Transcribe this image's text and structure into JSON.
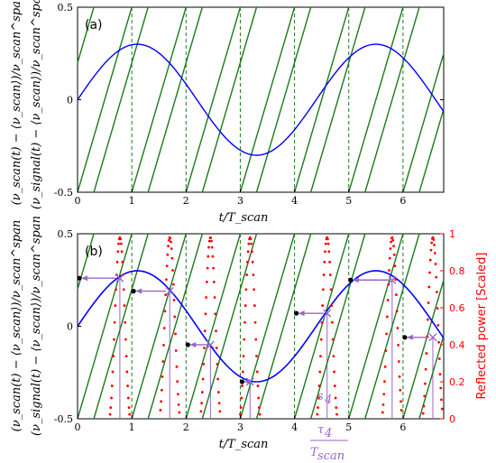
{
  "figure": {
    "colors": {
      "scan": "#1e7a1e",
      "signal": "#0000ff",
      "reflected": "#ff0000",
      "markers": "#9966cc",
      "frame": "#000000"
    }
  },
  "chart_data": [
    {
      "type": "line",
      "panel_label": "(a)",
      "xlabel": "t/T_scan",
      "ylabel_line1": "(ν_scan(t) − ⟨ν_scan⟩)/ν_scan^span",
      "ylabel_line2": "(ν_signal(t) − ⟨ν_scan⟩)/ν_scan^span",
      "xlim": [
        0,
        6.75
      ],
      "ylim": [
        -0.5,
        0.5
      ],
      "xticks": [
        0,
        1,
        2,
        3,
        4,
        5,
        6
      ],
      "xtick_labels": [
        "0",
        "1",
        "2",
        "3",
        "4",
        "5",
        "6"
      ],
      "yticks": [
        -0.5,
        0,
        0.5
      ],
      "ytick_labels": [
        "-0.5",
        "0",
        "0.5"
      ],
      "grid": "vertical dashed at integer t",
      "series": [
        {
          "kind": "sawtooth",
          "description_values": {
            "period": 1.0,
            "shift": 0.7,
            "min": -0.5,
            "max": 0.5
          },
          "lines": [
            {
              "x": [
                -0.7,
                0.3
              ],
              "y": [
                -0.5,
                0.5
              ]
            },
            {
              "x": [
                0.0,
                1.0
              ],
              "y": [
                -0.5,
                0.5
              ]
            },
            {
              "x": [
                1.0,
                2.0
              ],
              "y": [
                -0.5,
                0.5
              ]
            },
            {
              "x": [
                2.0,
                3.0
              ],
              "y": [
                -0.5,
                0.5
              ]
            },
            {
              "x": [
                3.0,
                4.0
              ],
              "y": [
                -0.5,
                0.5
              ]
            },
            {
              "x": [
                4.0,
                5.0
              ],
              "y": [
                -0.5,
                0.5
              ]
            },
            {
              "x": [
                5.0,
                6.0
              ],
              "y": [
                -0.5,
                0.5
              ]
            },
            {
              "x": [
                6.0,
                7.0
              ],
              "y": [
                -0.5,
                0.5
              ]
            },
            {
              "x": [
                0.3,
                1.3
              ],
              "y": [
                -0.5,
                0.5
              ]
            },
            {
              "x": [
                1.3,
                2.3
              ],
              "y": [
                -0.5,
                0.5
              ]
            },
            {
              "x": [
                2.3,
                3.3
              ],
              "y": [
                -0.5,
                0.5
              ]
            },
            {
              "x": [
                3.3,
                4.3
              ],
              "y": [
                -0.5,
                0.5
              ]
            },
            {
              "x": [
                4.3,
                5.3
              ],
              "y": [
                -0.5,
                0.5
              ]
            },
            {
              "x": [
                5.3,
                6.3
              ],
              "y": [
                -0.5,
                0.5
              ]
            },
            {
              "x": [
                6.3,
                7.3
              ],
              "y": [
                -0.5,
                0.5
              ]
            }
          ]
        },
        {
          "kind": "sine",
          "amplitude": 0.3,
          "period": 4.4,
          "phase_x0": 0.0,
          "x_range": [
            0,
            6.75
          ]
        }
      ]
    },
    {
      "type": "line",
      "panel_label": "(b)",
      "xlabel": "t/T_scan",
      "ylabel_line1": "(ν_scan(t) − ⟨ν_scan⟩)/ν_scan^span",
      "ylabel_line2": "(ν_signal(t) − ⟨ν_scan⟩)/ν_scan^span",
      "ylabel_right": "Reflected power [Scaled]",
      "xlim": [
        0,
        6.75
      ],
      "ylim": [
        -0.5,
        0.5
      ],
      "ylim_right": [
        0,
        1
      ],
      "xticks": [
        0,
        1,
        2,
        3,
        4,
        5,
        6
      ],
      "xtick_labels": [
        "0",
        "1",
        "2",
        "3",
        "4",
        "5",
        "6"
      ],
      "yticks": [
        -0.5,
        0,
        0.5
      ],
      "ytick_labels": [
        "-0.5",
        "0",
        "0.5"
      ],
      "yticks_right": [
        0,
        0.2,
        0.4,
        0.6,
        0.8,
        1
      ],
      "ytick_labels_right": [
        "0",
        "0.2",
        "0.4",
        "0.6",
        "0.8",
        "1"
      ],
      "intersections": [
        {
          "t": 0.78,
          "y": 0.26
        },
        {
          "t": 1.7,
          "y": 0.19
        },
        {
          "t": 2.45,
          "y": -0.1
        },
        {
          "t": 3.18,
          "y": -0.3
        },
        {
          "t": 4.6,
          "y": 0.07
        },
        {
          "t": 5.8,
          "y": 0.25
        },
        {
          "t": 6.55,
          "y": -0.06
        }
      ],
      "arrow_starts": [
        {
          "t": 0.0,
          "y": 0.26
        },
        {
          "t": 1.0,
          "y": 0.19
        },
        {
          "t": 2.0,
          "y": -0.1
        },
        {
          "t": 3.0,
          "y": -0.3
        },
        {
          "t": 4.0,
          "y": 0.07
        },
        {
          "t": 5.0,
          "y": 0.25
        },
        {
          "t": 6.0,
          "y": -0.06
        }
      ],
      "annotations": {
        "s4": "s",
        "s4_sub": "4",
        "tau4_num": "τ",
        "tau4_num_sub": "4",
        "tau4_den": "T",
        "tau4_den_sub": "scan"
      }
    }
  ]
}
